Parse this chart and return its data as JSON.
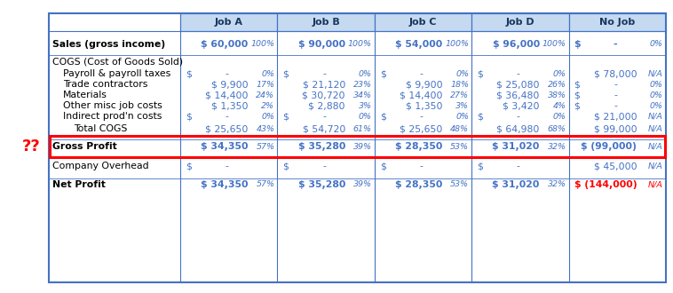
{
  "blue": "#4472C4",
  "red": "#FF0000",
  "dark_blue": "#17375E",
  "light_blue_hdr": "#C5D9F1",
  "col_names": [
    "Job A",
    "Job B",
    "Job C",
    "Job D",
    "No Job"
  ],
  "rows": [
    {
      "key": "sales",
      "label": "Sales (gross income)",
      "bold": true,
      "indent": 0,
      "sep_above": false,
      "sep_below": true,
      "vals": [
        [
          "$ 60,000",
          "100%"
        ],
        [
          "$ 90,000",
          "100%"
        ],
        [
          "$ 54,000",
          "100%"
        ],
        [
          "$ 96,000",
          "100%"
        ],
        [
          "$  -",
          "0%"
        ]
      ],
      "dashes": [
        false,
        false,
        false,
        false,
        true
      ],
      "red_val": [
        false,
        false,
        false,
        false,
        false
      ]
    },
    {
      "key": "cogs_hdr",
      "label": "COGS (Cost of Goods Sold)",
      "bold": false,
      "indent": 0,
      "sep_above": true,
      "sep_below": false,
      "vals": [],
      "dashes": [],
      "red_val": []
    },
    {
      "key": "payroll",
      "label": "Payroll & payroll taxes",
      "bold": false,
      "indent": 1,
      "sep_above": false,
      "sep_below": false,
      "vals": [
        [
          "$  -",
          "0%"
        ],
        [
          "$  -",
          "0%"
        ],
        [
          "$  -",
          "0%"
        ],
        [
          "$  -",
          "0%"
        ],
        [
          "$ 78,000",
          "N/A"
        ]
      ],
      "dashes": [
        true,
        true,
        true,
        true,
        false
      ],
      "red_val": [
        false,
        false,
        false,
        false,
        false
      ]
    },
    {
      "key": "trade",
      "label": "Trade contractors",
      "bold": false,
      "indent": 1,
      "sep_above": false,
      "sep_below": false,
      "vals": [
        [
          "$ 9,900",
          "17%"
        ],
        [
          "$ 21,120",
          "23%"
        ],
        [
          "$ 9,900",
          "18%"
        ],
        [
          "$ 25,080",
          "26%"
        ],
        [
          "$  -",
          "0%"
        ]
      ],
      "dashes": [
        false,
        false,
        false,
        false,
        true
      ],
      "red_val": [
        false,
        false,
        false,
        false,
        false
      ]
    },
    {
      "key": "materials",
      "label": "Materials",
      "bold": false,
      "indent": 1,
      "sep_above": false,
      "sep_below": false,
      "vals": [
        [
          "$ 14,400",
          "24%"
        ],
        [
          "$ 30,720",
          "34%"
        ],
        [
          "$ 14,400",
          "27%"
        ],
        [
          "$ 36,480",
          "38%"
        ],
        [
          "$  -",
          "0%"
        ]
      ],
      "dashes": [
        false,
        false,
        false,
        false,
        true
      ],
      "red_val": [
        false,
        false,
        false,
        false,
        false
      ]
    },
    {
      "key": "misc",
      "label": "Other misc job costs",
      "bold": false,
      "indent": 1,
      "sep_above": false,
      "sep_below": false,
      "vals": [
        [
          "$ 1,350",
          "2%"
        ],
        [
          "$ 2,880",
          "3%"
        ],
        [
          "$ 1,350",
          "3%"
        ],
        [
          "$ 3,420",
          "4%"
        ],
        [
          "$  -",
          "0%"
        ]
      ],
      "dashes": [
        false,
        false,
        false,
        false,
        true
      ],
      "red_val": [
        false,
        false,
        false,
        false,
        false
      ]
    },
    {
      "key": "indirect",
      "label": "Indirect prod'n costs",
      "bold": false,
      "indent": 1,
      "sep_above": false,
      "sep_below": false,
      "vals": [
        [
          "$  -",
          "0%"
        ],
        [
          "$  -",
          "0%"
        ],
        [
          "$  -",
          "0%"
        ],
        [
          "$  -",
          "0%"
        ],
        [
          "$ 21,000",
          "N/A"
        ]
      ],
      "dashes": [
        true,
        true,
        true,
        true,
        false
      ],
      "red_val": [
        false,
        false,
        false,
        false,
        false
      ]
    },
    {
      "key": "total_cogs",
      "label": "Total COGS",
      "bold": false,
      "indent": 2,
      "sep_above": false,
      "sep_below": true,
      "vals": [
        [
          "$ 25,650",
          "43%"
        ],
        [
          "$ 54,720",
          "61%"
        ],
        [
          "$ 25,650",
          "48%"
        ],
        [
          "$ 64,980",
          "68%"
        ],
        [
          "$ 99,000",
          "N/A"
        ]
      ],
      "dashes": [
        false,
        false,
        false,
        false,
        false
      ],
      "red_val": [
        false,
        false,
        false,
        false,
        false
      ]
    },
    {
      "key": "gross",
      "label": "Gross Profit",
      "bold": true,
      "indent": 0,
      "sep_above": true,
      "sep_below": true,
      "highlight": true,
      "vals": [
        [
          "$ 34,350",
          "57%"
        ],
        [
          "$ 35,280",
          "39%"
        ],
        [
          "$ 28,350",
          "53%"
        ],
        [
          "$ 31,020",
          "32%"
        ],
        [
          "$ (99,000)",
          "N/A"
        ]
      ],
      "dashes": [
        false,
        false,
        false,
        false,
        false
      ],
      "red_val": [
        false,
        false,
        false,
        false,
        false
      ]
    },
    {
      "key": "overhead",
      "label": "Company Overhead",
      "bold": false,
      "indent": 0,
      "sep_above": true,
      "sep_below": false,
      "vals": [
        [
          "$  -",
          ""
        ],
        [
          "$  -",
          ""
        ],
        [
          "$  -",
          ""
        ],
        [
          "$  -",
          ""
        ],
        [
          "$ 45,000",
          "N/A"
        ]
      ],
      "dashes": [
        true,
        true,
        true,
        true,
        false
      ],
      "red_val": [
        false,
        false,
        false,
        false,
        false
      ]
    },
    {
      "key": "net",
      "label": "Net Profit",
      "bold": true,
      "indent": 0,
      "sep_above": true,
      "sep_below": false,
      "vals": [
        [
          "$ 34,350",
          "57%"
        ],
        [
          "$ 35,280",
          "39%"
        ],
        [
          "$ 28,350",
          "53%"
        ],
        [
          "$ 31,020",
          "32%"
        ],
        [
          "$ (144,000)",
          "N/A"
        ]
      ],
      "dashes": [
        false,
        false,
        false,
        false,
        false
      ],
      "red_val": [
        false,
        false,
        false,
        false,
        true
      ]
    }
  ],
  "fig_w": 7.58,
  "fig_h": 3.3,
  "dpi": 100
}
